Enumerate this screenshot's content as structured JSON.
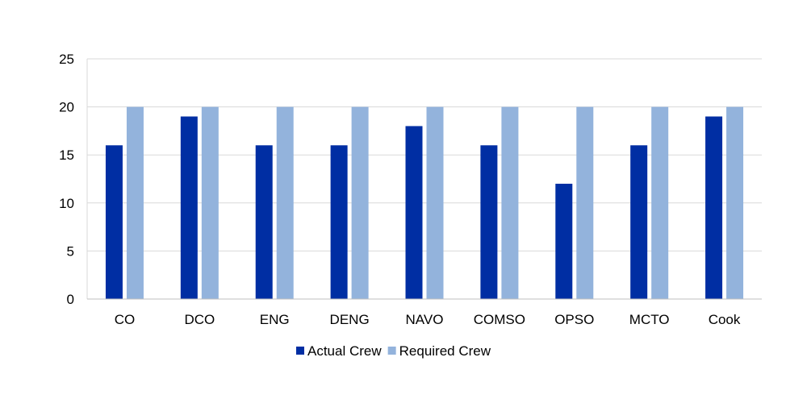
{
  "chart_data": {
    "type": "bar",
    "title": "",
    "xlabel": "",
    "ylabel": "",
    "categories": [
      "CO",
      "DCO",
      "ENG",
      "DENG",
      "NAVO",
      "COMSO",
      "OPSO",
      "MCTO",
      "Cook"
    ],
    "series": [
      {
        "name": "Actual Crew",
        "color": "#002ea3",
        "values": [
          16,
          19,
          16,
          16,
          18,
          16,
          12,
          16,
          19
        ]
      },
      {
        "name": "Required Crew",
        "color": "#93b3dc",
        "values": [
          20,
          20,
          20,
          20,
          20,
          20,
          20,
          20,
          20
        ]
      }
    ],
    "ylim": [
      0,
      25
    ],
    "yticks": [
      0,
      5,
      10,
      15,
      20,
      25
    ],
    "grid": true,
    "legend": "bottom"
  }
}
